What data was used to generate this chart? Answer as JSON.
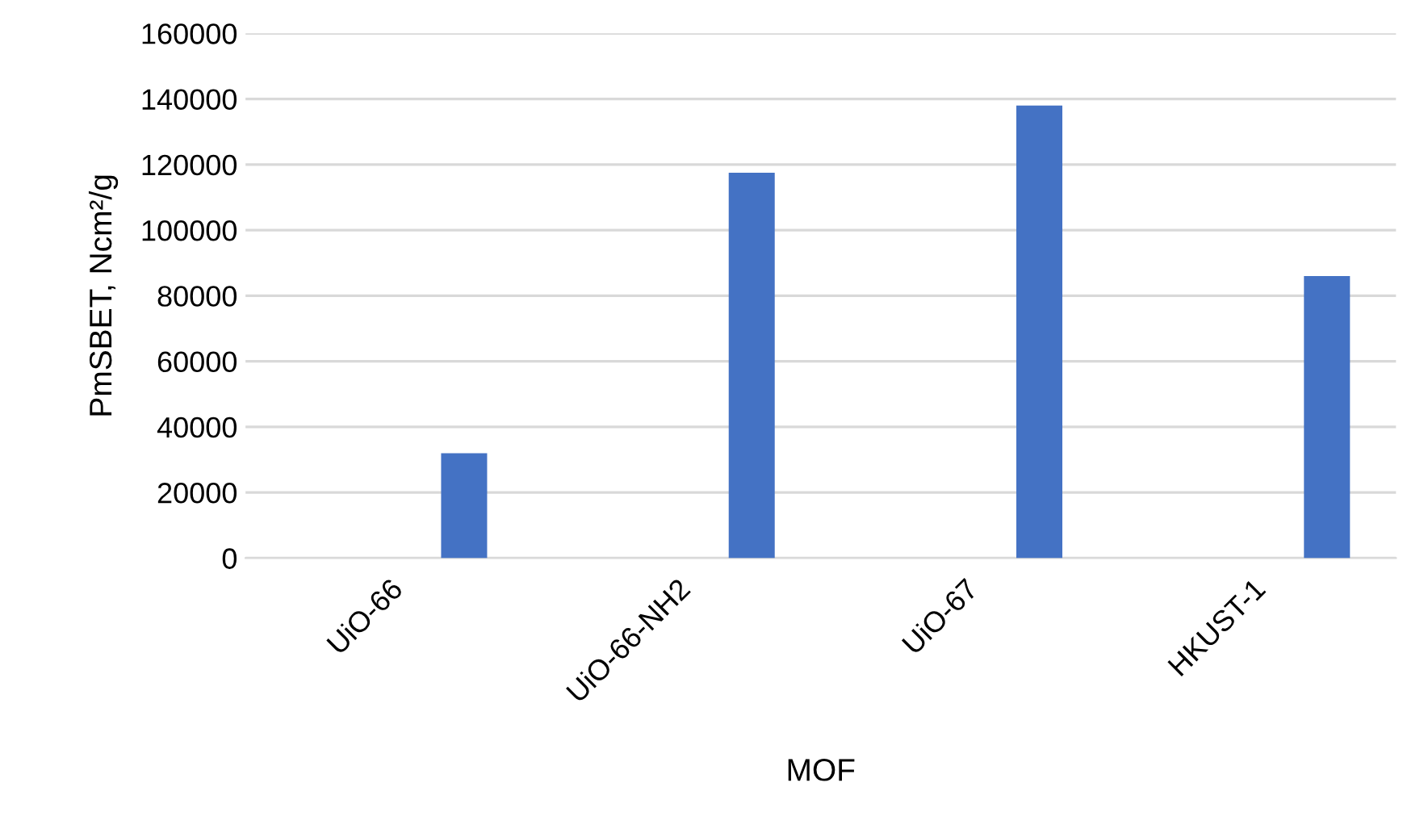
{
  "chart_data": {
    "type": "bar",
    "xlabel": "MOF",
    "ylabel": "PmSBET, Ncm²/g",
    "categories": [
      "UiO-66",
      "UiO-66-NH2",
      "UiO-67",
      "HKUST-1"
    ],
    "series": [
      {
        "color": "#4472c4",
        "values": [
          32000,
          117500,
          138000,
          86000
        ]
      }
    ],
    "ylim": [
      0,
      160000
    ],
    "yticks": [
      0,
      20000,
      40000,
      60000,
      80000,
      100000,
      120000,
      140000,
      160000
    ],
    "grid": "y"
  }
}
